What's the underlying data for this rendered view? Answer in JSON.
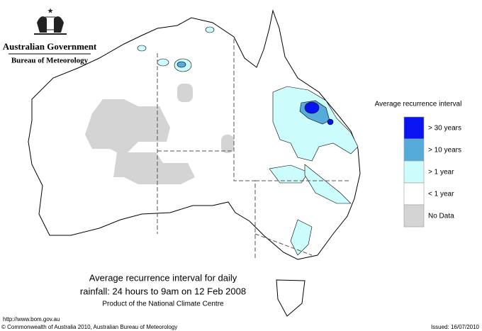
{
  "header": {
    "government": "Australian Government",
    "agency": "Bureau of Meteorology"
  },
  "legend": {
    "title": "Average recurrence interval",
    "items": [
      {
        "label": "> 30 years",
        "color": "#0a14f0"
      },
      {
        "label": "> 10 years",
        "color": "#55acd8"
      },
      {
        "label": "> 1 year",
        "color": "#ccfcfc"
      },
      {
        "label": "< 1 year",
        "color": "#ffffff"
      },
      {
        "label": "No Data",
        "color": "#d4d4d4"
      }
    ]
  },
  "caption": {
    "line1": "Average recurrence interval for daily",
    "line2": "rainfall: 24 hours to 9am on 12 Feb 2008",
    "line3": "Product of the National Climate Centre"
  },
  "footer": {
    "url": "http://www.bom.gov.au",
    "copyright": "© Commonwealth of Australia 2010, Australian Bureau of Meteorology",
    "issued": "Issued: 16/07/2010"
  }
}
